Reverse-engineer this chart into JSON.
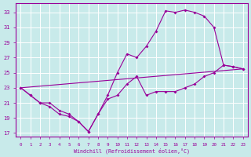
{
  "background_color": "#c8eaea",
  "grid_color": "#ffffff",
  "line_color": "#990099",
  "xlabel": "Windchill (Refroidissement éolien,°C)",
  "x_ticks": [
    0,
    1,
    2,
    3,
    4,
    5,
    6,
    7,
    8,
    9,
    10,
    11,
    12,
    13,
    14,
    15,
    16,
    17,
    18,
    19,
    20,
    21,
    22,
    23
  ],
  "y_ticks": [
    17,
    19,
    21,
    23,
    25,
    27,
    29,
    31,
    33
  ],
  "xlim": [
    -0.5,
    23.5
  ],
  "ylim": [
    16.5,
    34.2
  ],
  "series": [
    {
      "x": [
        0,
        1,
        2,
        3,
        4,
        5,
        6,
        7,
        8,
        9,
        10,
        11,
        12,
        13,
        14,
        15,
        16,
        17,
        18,
        19,
        20,
        21,
        22,
        23
      ],
      "y": [
        23,
        22,
        21,
        20.5,
        19.5,
        19.2,
        18.5,
        17.2,
        19.5,
        22.0,
        25.0,
        27.5,
        27.0,
        28.5,
        30.5,
        33.2,
        33.0,
        33.3,
        33.0,
        32.5,
        31.0,
        26.0,
        25.8,
        25.5
      ]
    },
    {
      "x": [
        0,
        1,
        2,
        3,
        4,
        5,
        6,
        7,
        8,
        9,
        10,
        11,
        12,
        13,
        14,
        15,
        16,
        17,
        18,
        19,
        20,
        21,
        22,
        23
      ],
      "y": [
        23,
        22,
        21,
        21.0,
        20.0,
        19.5,
        18.5,
        17.2,
        19.5,
        21.5,
        22.0,
        23.5,
        24.5,
        22.0,
        22.5,
        22.5,
        22.5,
        23.0,
        23.5,
        24.5,
        25.0,
        26.0,
        25.8,
        25.5
      ]
    },
    {
      "x": [
        0,
        23
      ],
      "y": [
        23,
        25.5
      ]
    }
  ]
}
